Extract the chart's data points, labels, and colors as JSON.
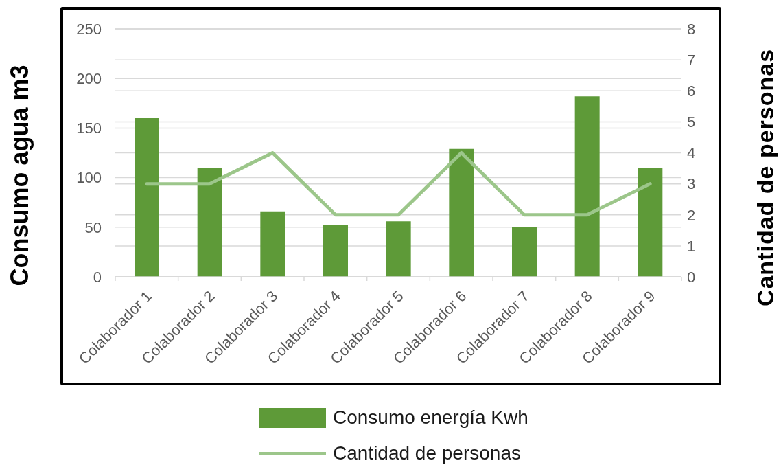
{
  "chart_data": {
    "type": "bar",
    "categories": [
      "Colaborador 1",
      "Colaborador 2",
      "Colaborador 3",
      "Colaborador 4",
      "Colaborador 5",
      "Colaborador 6",
      "Colaborador 7",
      "Colaborador 8",
      "Colaborador 9"
    ],
    "ylabel": "Consumo agua m3",
    "y2label": "Cantidad de personas",
    "ylim": [
      0,
      250
    ],
    "yticks": [
      0,
      50,
      100,
      150,
      200,
      250
    ],
    "y2lim": [
      0,
      8
    ],
    "y2ticks": [
      0,
      1,
      2,
      3,
      4,
      5,
      6,
      7,
      8
    ],
    "grid": true,
    "legend": "bottom",
    "marker": "none",
    "series": [
      {
        "name": "Consumo energía Kwh",
        "color": "#5e9a38",
        "values": [
          160,
          110,
          66,
          52,
          56,
          129,
          50,
          182,
          110
        ]
      },
      {
        "name": "Cantidad de personas",
        "type": "line",
        "axis": "y2",
        "color": "#9cc68a",
        "line_style": "solid",
        "values": [
          3,
          3,
          4,
          2,
          2,
          4,
          2,
          2,
          3
        ]
      }
    ]
  }
}
